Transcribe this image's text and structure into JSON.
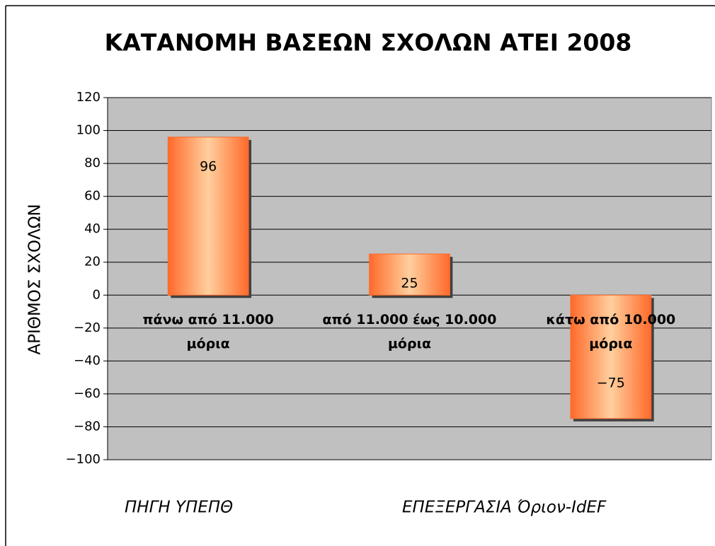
{
  "chart_data": {
    "type": "bar",
    "title": "ΚΑΤΑΝΟΜΗ ΒΑΣΕΩΝ ΣΧΟΛΩΝ ΑΤΕΙ 2008",
    "y_label": "ΑΡΙΘΜΟΣ ΣΧΟΛΩΝ",
    "categories": [
      "πάνω από 11.000 μόρια",
      "από 11.000 έως 10.000 μόρια",
      "κάτω από 10.000 μόρια"
    ],
    "values": [
      96,
      25,
      -75
    ],
    "value_labels": [
      "96",
      "25",
      "−75"
    ],
    "color": "#ff6a2a",
    "ylim": [
      -100,
      120
    ],
    "yticks": [
      {
        "value": -100,
        "label": "−100"
      },
      {
        "value": -80,
        "label": "−80"
      },
      {
        "value": -60,
        "label": "−60"
      },
      {
        "value": -40,
        "label": "−40"
      },
      {
        "value": -20,
        "label": "−20"
      },
      0,
      20,
      40,
      60,
      80,
      100,
      120
    ],
    "grid": true,
    "annotations": [
      "ΠΗΓΗ ΥΠΕΠΘ",
      "ΕΠΕΞΕΡΓΑΣΙΑ Όριον-IdEF"
    ]
  }
}
